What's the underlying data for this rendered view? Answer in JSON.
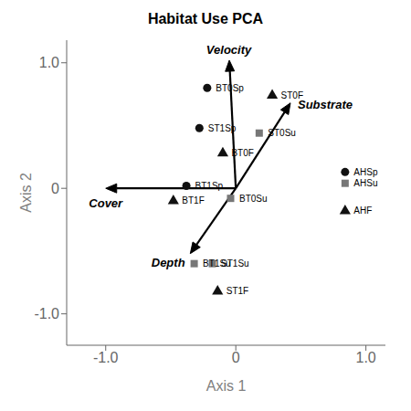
{
  "chart_data": {
    "type": "scatter",
    "title": "Habitat Use PCA",
    "xlabel": "Axis 1",
    "ylabel": "Axis 2",
    "xlim": [
      -1.3,
      1.15
    ],
    "ylim": [
      -1.25,
      1.18
    ],
    "xticks": [
      {
        "value": -1.0,
        "label": "-1.0"
      },
      0,
      {
        "value": 1.0,
        "label": "1.0"
      }
    ],
    "yticks": [
      {
        "value": -1.0,
        "label": "-1.0"
      },
      0,
      {
        "value": 1.0,
        "label": "1.0"
      }
    ],
    "grid": false,
    "series": [
      {
        "type": "arrow",
        "color": "#000000",
        "labels": [
          "Velocity",
          "Substrate",
          "Cover",
          "Depth"
        ],
        "x0": [
          0,
          0,
          0,
          0
        ],
        "y0": [
          0,
          0,
          0,
          0
        ],
        "x": [
          -0.05,
          0.42,
          -1.0,
          -0.35
        ],
        "y": [
          1.02,
          0.68,
          0.0,
          -0.52
        ]
      },
      {
        "type": "scatter",
        "marker": "circle",
        "color": "#111111",
        "labels": [
          "BT0Sp",
          "ST1Sp",
          "BT1Sp",
          "AHSp"
        ],
        "x": [
          -0.22,
          -0.28,
          -0.38,
          0.84
        ],
        "y": [
          0.8,
          0.48,
          0.02,
          0.13
        ]
      },
      {
        "type": "scatter",
        "marker": "triangle",
        "color": "#111111",
        "labels": [
          "ST0F",
          "BT0F",
          "BT1F",
          "AHF",
          "ST1F"
        ],
        "x": [
          0.28,
          -0.1,
          -0.48,
          0.84,
          -0.14
        ],
        "y": [
          0.74,
          0.28,
          -0.1,
          -0.18,
          -0.82
        ]
      },
      {
        "type": "scatter",
        "marker": "square",
        "color": "#777777",
        "labels": [
          "ST0Su",
          "BT0Su",
          "AHSu",
          "BT1Su",
          "ST1Su"
        ],
        "x": [
          0.18,
          -0.04,
          0.84,
          -0.32,
          -0.18
        ],
        "y": [
          0.44,
          -0.08,
          0.04,
          -0.6,
          -0.6
        ]
      }
    ]
  }
}
